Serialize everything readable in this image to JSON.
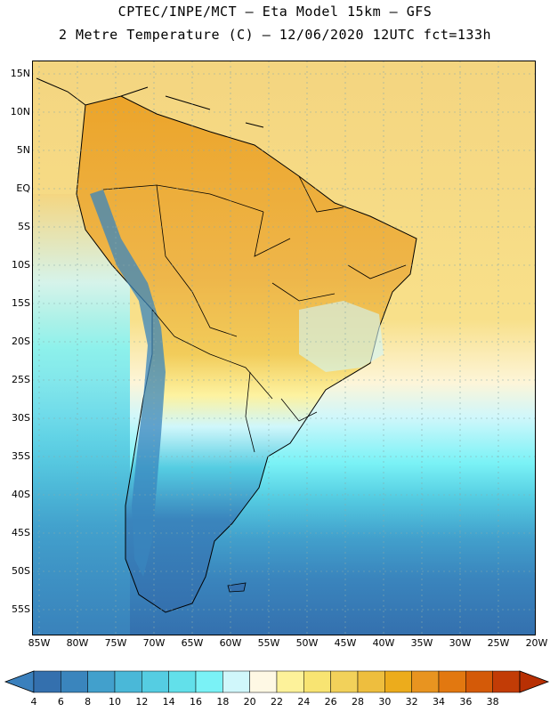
{
  "title_line1": "CPTEC/INPE/MCT –  Eta Model 15km – GFS",
  "title_line2": "2 Metre Temperature (C) – 12/06/2020 12UTC fct=133h",
  "lat_labels": [
    "15N",
    "10N",
    "5N",
    "EQ",
    "5S",
    "10S",
    "15S",
    "20S",
    "25S",
    "30S",
    "35S",
    "40S",
    "45S",
    "50S",
    "55S"
  ],
  "lon_labels": [
    "85W",
    "80W",
    "75W",
    "70W",
    "65W",
    "60W",
    "55W",
    "50W",
    "45W",
    "40W",
    "35W",
    "30W",
    "25W",
    "20W"
  ],
  "colorbar": {
    "ticks": [
      "4",
      "6",
      "8",
      "10",
      "12",
      "14",
      "16",
      "18",
      "20",
      "22",
      "24",
      "26",
      "28",
      "30",
      "32",
      "34",
      "36",
      "38"
    ],
    "colors": [
      "#3470ae",
      "#3a85bd",
      "#42a0cc",
      "#4ab8d8",
      "#55cde2",
      "#62e0ea",
      "#7af2f6",
      "#d0f7fb",
      "#fef8e4",
      "#fdf29a",
      "#f8e472",
      "#f2d15a",
      "#eebe3e",
      "#ecac1c",
      "#e89420",
      "#e27810",
      "#d45a08",
      "#c23c06"
    ],
    "low_color": "#3a80bd",
    "high_color": "#b83004"
  }
}
